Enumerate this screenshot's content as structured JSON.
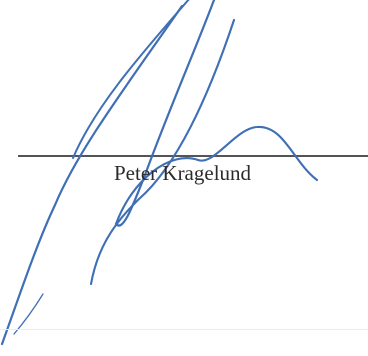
{
  "signature_block": {
    "signer_name": "Peter Kragelund",
    "signature_graphic": "handwritten-signature",
    "ink_color": "#3f6fb5",
    "line_color": "#555555",
    "text_color": "#2b2b2b"
  }
}
